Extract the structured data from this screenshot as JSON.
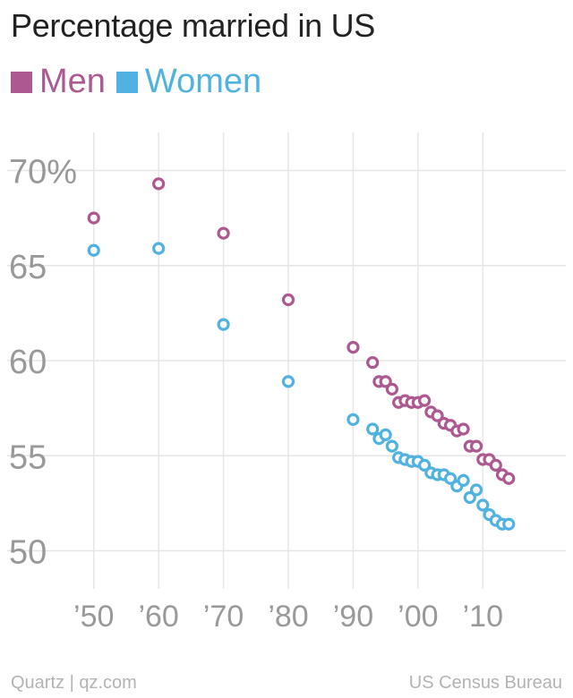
{
  "title": "Percentage married in US",
  "footer": {
    "source_left": "Quartz | qz.com",
    "source_right": "US Census Bureau"
  },
  "colors": {
    "men": "#ad5890",
    "women": "#4fb2e0",
    "grid": "#e6e6e6",
    "tick_text": "#999999"
  },
  "chart_data": {
    "type": "scatter",
    "title": "Percentage married in US",
    "xlabel": "",
    "ylabel": "",
    "xlim": [
      1947,
      2017
    ],
    "ylim": [
      48,
      72
    ],
    "grid": true,
    "legend_position": "top-left",
    "x_ticks": [
      {
        "value": 1950,
        "label": "’50"
      },
      {
        "value": 1960,
        "label": "’60"
      },
      {
        "value": 1970,
        "label": "’70"
      },
      {
        "value": 1980,
        "label": "’80"
      },
      {
        "value": 1990,
        "label": "’90"
      },
      {
        "value": 2000,
        "label": "’00"
      },
      {
        "value": 2010,
        "label": "’10"
      }
    ],
    "y_ticks": [
      {
        "value": 70,
        "label": "70%"
      },
      {
        "value": 65,
        "label": "65"
      },
      {
        "value": 60,
        "label": "60"
      },
      {
        "value": 55,
        "label": "55"
      },
      {
        "value": 50,
        "label": "50"
      }
    ],
    "series": [
      {
        "name": "Men",
        "color": "#ad5890",
        "x": [
          1950,
          1960,
          1970,
          1980,
          1990,
          1993,
          1994,
          1995,
          1996,
          1997,
          1998,
          1999,
          2000,
          2001,
          2002,
          2003,
          2004,
          2005,
          2006,
          2007,
          2008,
          2009,
          2010,
          2011,
          2012,
          2013,
          2014
        ],
        "y": [
          67.5,
          69.3,
          66.7,
          63.2,
          60.7,
          59.9,
          58.9,
          58.9,
          58.5,
          57.8,
          57.9,
          57.8,
          57.8,
          57.9,
          57.3,
          57.1,
          56.7,
          56.6,
          56.3,
          56.4,
          55.5,
          55.5,
          54.8,
          54.8,
          54.5,
          54.0,
          53.8
        ]
      },
      {
        "name": "Women",
        "color": "#4fb2e0",
        "x": [
          1950,
          1960,
          1970,
          1980,
          1990,
          1993,
          1994,
          1995,
          1996,
          1997,
          1998,
          1999,
          2000,
          2001,
          2002,
          2003,
          2004,
          2005,
          2006,
          2007,
          2008,
          2009,
          2010,
          2011,
          2012,
          2013,
          2014
        ],
        "y": [
          65.8,
          65.9,
          61.9,
          58.9,
          56.9,
          56.4,
          55.9,
          56.1,
          55.5,
          54.9,
          54.8,
          54.7,
          54.7,
          54.5,
          54.1,
          54.0,
          54.0,
          53.8,
          53.4,
          53.7,
          52.8,
          53.2,
          52.4,
          51.9,
          51.6,
          51.4,
          51.4
        ]
      }
    ]
  }
}
